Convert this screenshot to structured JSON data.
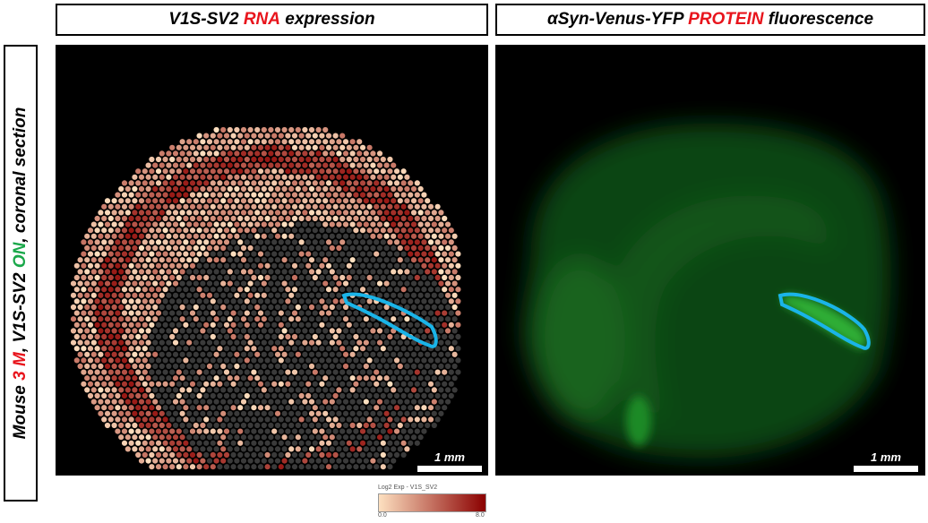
{
  "panels": [
    {
      "title": [
        {
          "text": "V1S-SV2 ",
          "color": "#000000"
        },
        {
          "text": "RNA",
          "color": "#e8141c"
        },
        {
          "text": " expression",
          "color": "#000000"
        }
      ],
      "scale_bar": "1 mm"
    },
    {
      "title": [
        {
          "text": "αSyn-Venus-YFP ",
          "color": "#000000"
        },
        {
          "text": "PROTEIN",
          "color": "#e8141c"
        },
        {
          "text": " fluorescence",
          "color": "#000000"
        }
      ],
      "scale_bar": "1 mm"
    }
  ],
  "side_label": [
    {
      "text": "Mouse ",
      "color": "#000000"
    },
    {
      "text": "3 M",
      "color": "#e8141c"
    },
    {
      "text": ", V1S-SV2 ",
      "color": "#000000"
    },
    {
      "text": "ON",
      "color": "#1aa84a"
    },
    {
      "text": ", coronal section",
      "color": "#000000"
    }
  ],
  "colorbar": {
    "title": "Log2 Exp - V1S_SV2",
    "colors": [
      "#fde0c0",
      "#8b0000"
    ],
    "ticks": [
      {
        "value": 0,
        "label": "0.0"
      },
      {
        "value": 8,
        "label": "8.0"
      }
    ]
  }
}
